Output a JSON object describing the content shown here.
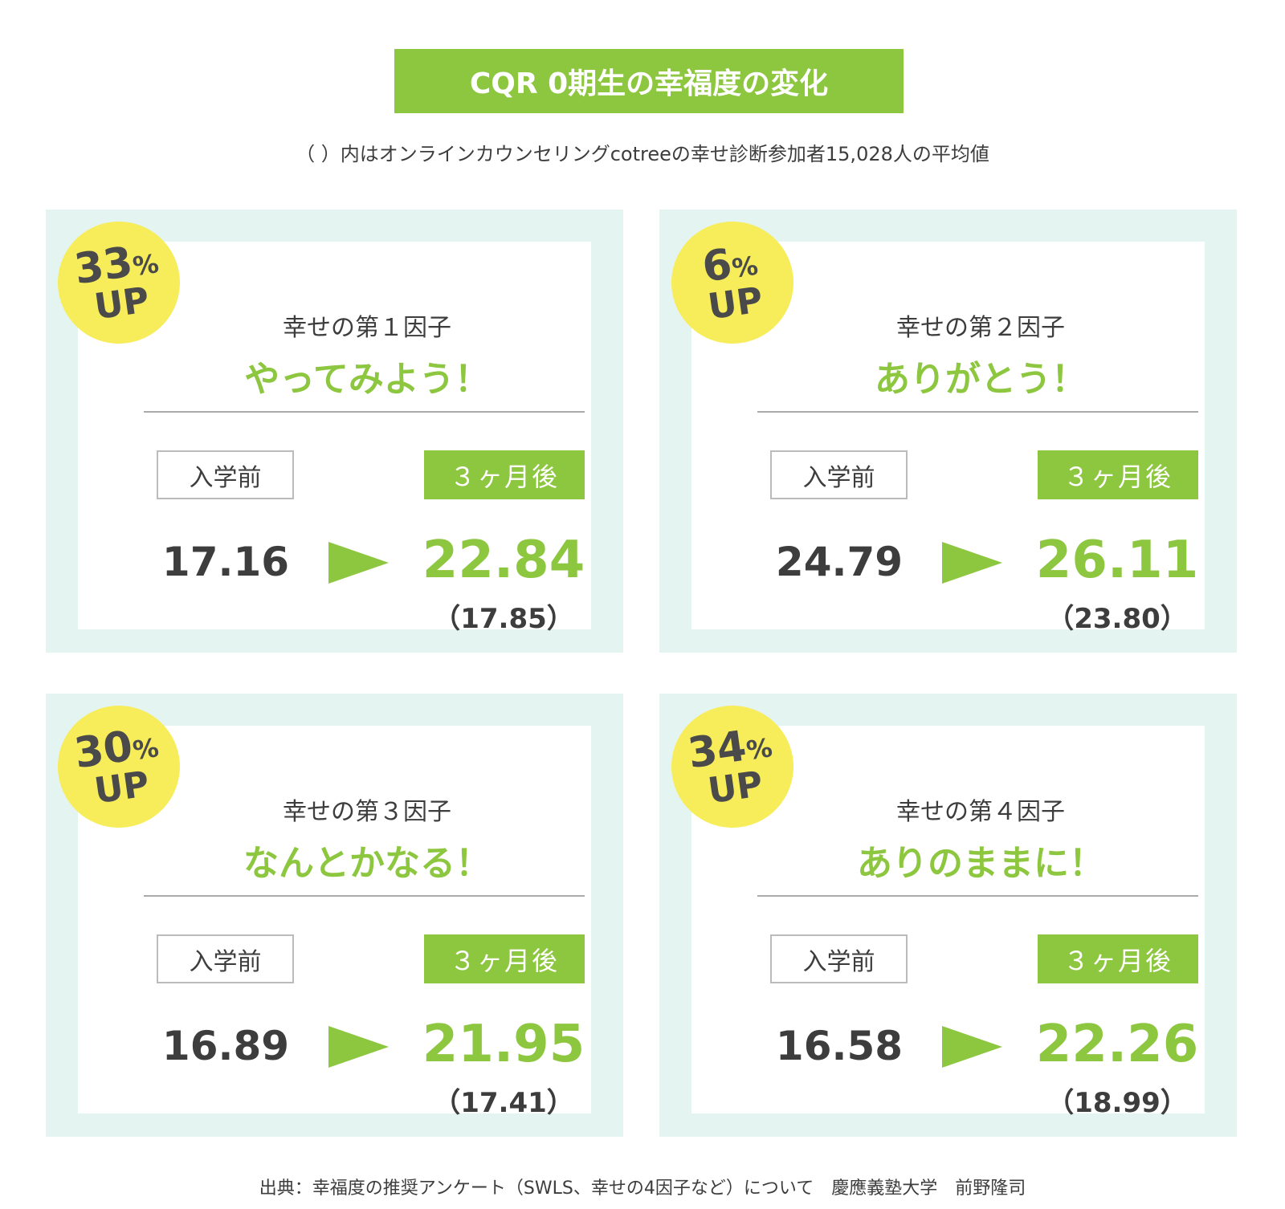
{
  "title": "CQR 0期生の幸福度の変化",
  "subtitle": "（ ）内はオンラインカウンセリングcotreeの幸せ診断参加者15,028人の平均値",
  "colors": {
    "accent": "#8dc63f",
    "card_bg": "#e4f4f1",
    "badge": "#f7ec5a",
    "text": "#3d3d3d"
  },
  "labels": {
    "before": "入学前",
    "after": "３ヶ月後",
    "up": "UP",
    "pct_sign": "%"
  },
  "cards": [
    {
      "increase": "33",
      "factor": "幸せの第１因子",
      "catch": "やってみよう！",
      "before": "17.16",
      "after": "22.84",
      "average": "（17.85）"
    },
    {
      "increase": "6",
      "factor": "幸せの第２因子",
      "catch": "ありがとう！",
      "before": "24.79",
      "after": "26.11",
      "average": "（23.80）"
    },
    {
      "increase": "30",
      "factor": "幸せの第３因子",
      "catch": "なんとかなる！",
      "before": "16.89",
      "after": "21.95",
      "average": "（17.41）"
    },
    {
      "increase": "34",
      "factor": "幸せの第４因子",
      "catch": "ありのままに！",
      "before": "16.58",
      "after": "22.26",
      "average": "（18.99）"
    }
  ],
  "footer": "出典：幸福度の推奨アンケート（SWLS、幸せの4因子など）について　慶應義塾大学　前野隆司"
}
